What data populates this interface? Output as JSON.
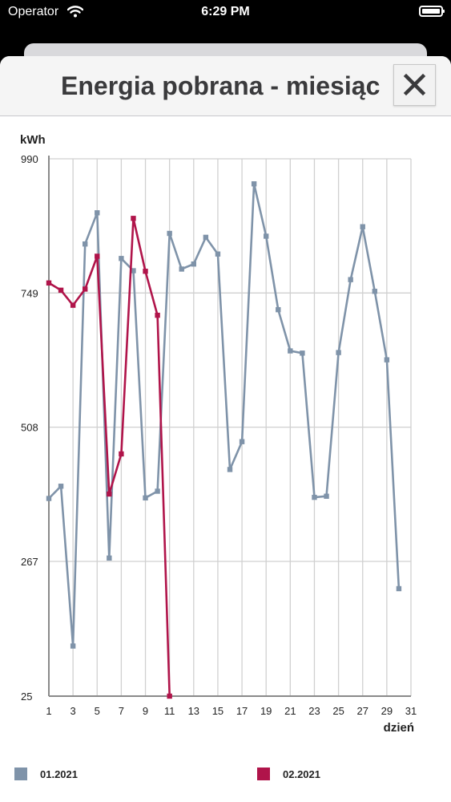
{
  "status": {
    "carrier": "Operator",
    "time": "6:29 PM"
  },
  "sheet": {
    "title": "Energia pobrana - miesiąc"
  },
  "chart_data": {
    "type": "line",
    "ylabel": "kWh",
    "xlabel": "dzień",
    "ylim": [
      25,
      990
    ],
    "yticks": [
      "990",
      "749",
      "508",
      "267",
      "25"
    ],
    "ytick_values": [
      990,
      749,
      508,
      267,
      25
    ],
    "xticks": [
      1,
      3,
      5,
      7,
      9,
      11,
      13,
      15,
      17,
      19,
      21,
      23,
      25,
      27,
      29,
      31
    ],
    "xlim": [
      1,
      31
    ],
    "grid": true,
    "legend_position": "bottom",
    "series": [
      {
        "name": "01.2021",
        "color": "#7f93a9",
        "x": [
          1,
          2,
          3,
          4,
          5,
          6,
          7,
          8,
          9,
          10,
          11,
          12,
          13,
          14,
          15,
          16,
          17,
          18,
          19,
          20,
          21,
          22,
          23,
          24,
          25,
          26,
          27,
          28,
          29,
          30
        ],
        "values": [
          380,
          402,
          115,
          837,
          893,
          273,
          811,
          789,
          381,
          393,
          856,
          792,
          801,
          849,
          819,
          432,
          482,
          945,
          851,
          719,
          645,
          641,
          382,
          384,
          642,
          773,
          868,
          752,
          629,
          218
        ]
      },
      {
        "name": "02.2021",
        "color": "#b0144a",
        "x": [
          1,
          2,
          3,
          4,
          5,
          6,
          7,
          8,
          9,
          10,
          11
        ],
        "values": [
          767,
          754,
          727,
          756,
          815,
          388,
          460,
          883,
          788,
          709,
          25
        ]
      }
    ]
  }
}
